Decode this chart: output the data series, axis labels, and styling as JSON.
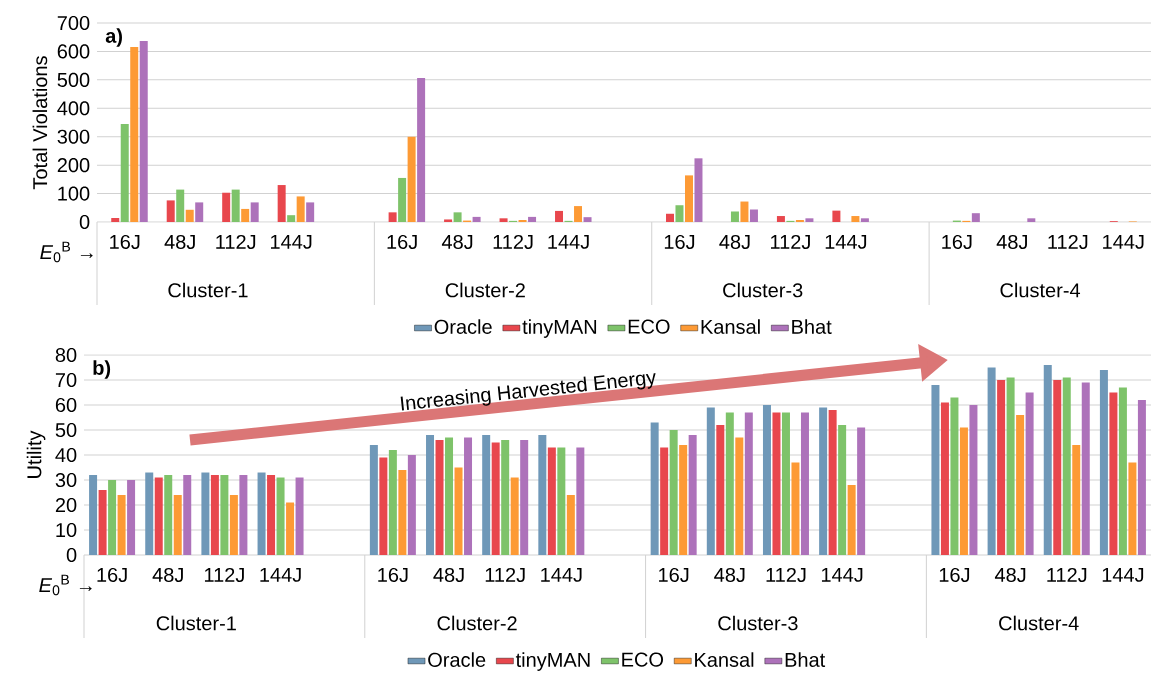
{
  "chart_data": [
    {
      "type": "bar",
      "ylabel": "Total Violations",
      "categories": [
        "16J",
        "48J",
        "112J",
        "144J",
        null,
        "16J",
        "48J",
        "112J",
        "144J",
        null,
        "16J",
        "48J",
        "112J",
        "144J",
        null,
        "16J",
        "48J",
        "112J",
        "144J"
      ],
      "series": [
        {
          "name": "Oracle",
          "color": "#6f98b8",
          "values": [
            0,
            0,
            0,
            0,
            null,
            0,
            0,
            0,
            0,
            null,
            0,
            0,
            0,
            0,
            null,
            0,
            0,
            0,
            0
          ]
        },
        {
          "name": "tinyMAN",
          "color": "#e8474d",
          "values": [
            14,
            76,
            103,
            130,
            null,
            34,
            9,
            13,
            39,
            null,
            29,
            0,
            21,
            40,
            null,
            0,
            0,
            0,
            3
          ]
        },
        {
          "name": "ECO",
          "color": "#7ec36a",
          "values": [
            345,
            114,
            114,
            24,
            null,
            155,
            34,
            4,
            4,
            null,
            59,
            37,
            4,
            0,
            null,
            5,
            0,
            0,
            0
          ]
        },
        {
          "name": "Kansal",
          "color": "#fd9a35",
          "values": [
            616,
            43,
            46,
            90,
            null,
            300,
            5,
            7,
            56,
            null,
            164,
            72,
            7,
            21,
            null,
            4,
            0,
            0,
            2
          ]
        },
        {
          "name": "Bhat",
          "color": "#ad72ba",
          "values": [
            637,
            69,
            69,
            69,
            null,
            507,
            18,
            18,
            17,
            null,
            224,
            44,
            13,
            13,
            null,
            31,
            13,
            0,
            0
          ]
        }
      ],
      "ylim": [
        0,
        700
      ],
      "yticks": [
        0,
        100,
        200,
        300,
        400,
        500,
        600,
        700
      ],
      "grid": "y",
      "legend": "bottom",
      "annotations": [
        "**a)**",
        "*E*$_{0}$$^{B}$ →",
        "Cluster-1",
        "Cluster-2",
        "Cluster-3",
        "Cluster-4"
      ]
    },
    {
      "type": "bar",
      "ylabel": "Utility",
      "categories": [
        "16J",
        "48J",
        "112J",
        "144J",
        null,
        "16J",
        "48J",
        "112J",
        "144J",
        null,
        "16J",
        "48J",
        "112J",
        "144J",
        null,
        "16J",
        "48J",
        "112J",
        "144J"
      ],
      "series": [
        {
          "name": "Oracle",
          "color": "#6f98b8",
          "values": [
            32,
            33,
            33,
            33,
            null,
            44,
            48,
            48,
            48,
            null,
            53,
            59,
            60,
            59,
            null,
            68,
            75,
            76,
            74
          ]
        },
        {
          "name": "tinyMAN",
          "color": "#e8474d",
          "values": [
            26,
            31,
            32,
            32,
            null,
            39,
            46,
            45,
            43,
            null,
            43,
            52,
            57,
            58,
            null,
            61,
            70,
            70,
            65
          ]
        },
        {
          "name": "ECO",
          "color": "#7ec36a",
          "values": [
            30,
            32,
            32,
            31,
            null,
            42,
            47,
            46,
            43,
            null,
            50,
            57,
            57,
            52,
            null,
            63,
            71,
            71,
            67
          ]
        },
        {
          "name": "Kansal",
          "color": "#fd9a35",
          "values": [
            24,
            24,
            24,
            21,
            null,
            34,
            35,
            31,
            24,
            null,
            44,
            47,
            37,
            28,
            null,
            51,
            56,
            44,
            37
          ]
        },
        {
          "name": "Bhat",
          "color": "#ad72ba",
          "values": [
            30,
            32,
            32,
            31,
            null,
            40,
            47,
            46,
            43,
            null,
            48,
            57,
            57,
            51,
            null,
            60,
            65,
            69,
            62
          ]
        }
      ],
      "ylim": [
        0,
        80
      ],
      "yticks": [
        0,
        10,
        20,
        30,
        40,
        50,
        60,
        70,
        80
      ],
      "grid": "y",
      "legend": "bottom",
      "annotations": [
        "**b)**",
        "*E*$_{0}$$^{B}$ →",
        "Cluster-1",
        "Cluster-2",
        "Cluster-3",
        "Cluster-4",
        "Increasing Harvested Energy"
      ]
    }
  ]
}
